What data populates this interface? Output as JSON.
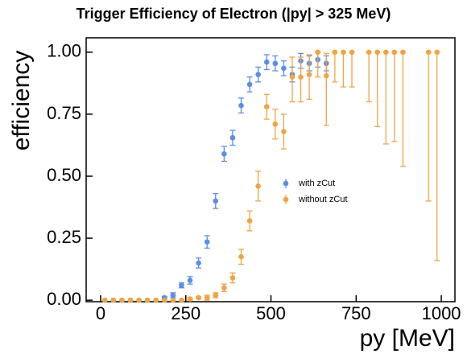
{
  "chart_data": {
    "type": "errorbar-scatter",
    "title": "Trigger Efficiency of Electron (|py| > 325 MeV)",
    "x_label": "py [MeV]",
    "y_label": "efficiency",
    "x": [
      12.5,
      37.5,
      62.5,
      87.5,
      112.5,
      137.5,
      162.5,
      187.5,
      212.5,
      237.5,
      262.5,
      287.5,
      312.5,
      337.5,
      362.5,
      387.5,
      412.5,
      437.5,
      462.5,
      487.5,
      512.5,
      537.5,
      562.5,
      587.5,
      612.5,
      637.5,
      662.5,
      687.5,
      712.5,
      737.5,
      762.5,
      787.5,
      812.5,
      837.5,
      862.5,
      887.5,
      912.5,
      937.5,
      962.5,
      987.5
    ],
    "series": [
      {
        "name": "with zCut",
        "color": "#5b8ee6",
        "values": [
          0,
          0,
          0,
          0,
          0,
          0,
          0,
          0.01,
          0.02,
          0.06,
          0.08,
          0.15,
          0.235,
          0.4,
          0.59,
          0.655,
          0.785,
          0.87,
          0.91,
          0.96,
          0.955,
          0.935,
          0.91,
          0.965,
          0.955,
          0.97,
          0.955,
          null,
          null,
          null,
          null,
          null,
          null,
          null,
          null,
          null,
          null,
          null,
          null,
          null
        ],
        "error_low": [
          0,
          0,
          0,
          0,
          0,
          0,
          0,
          0.005,
          0.01,
          0.01,
          0.015,
          0.02,
          0.025,
          0.03,
          0.03,
          0.03,
          0.03,
          0.03,
          0.03,
          0.03,
          0.03,
          0.03,
          0.03,
          0.03,
          0.03,
          0.03,
          0.03,
          null,
          null,
          null,
          null,
          null,
          null,
          null,
          null,
          null,
          null,
          null,
          null,
          null
        ],
        "error_high": [
          0,
          0,
          0,
          0,
          0,
          0,
          0,
          0.005,
          0.01,
          0.01,
          0.015,
          0.02,
          0.025,
          0.03,
          0.03,
          0.03,
          0.03,
          0.03,
          0.03,
          0.03,
          0.03,
          0.03,
          0.03,
          0.03,
          0.03,
          0.03,
          0.03,
          null,
          null,
          null,
          null,
          null,
          null,
          null,
          null,
          null,
          null,
          null,
          null,
          null
        ]
      },
      {
        "name": "without zCut",
        "color": "#f0a443",
        "values": [
          0,
          0,
          0,
          0,
          0,
          0,
          0,
          0,
          0,
          0,
          0.005,
          0.01,
          0.01,
          0.02,
          0.05,
          0.09,
          0.175,
          0.32,
          0.46,
          0.78,
          0.71,
          0.68,
          0.9,
          0.9,
          0.91,
          1,
          0.905,
          1,
          1,
          1,
          null,
          1,
          1,
          1,
          1,
          1,
          null,
          null,
          1,
          1
        ],
        "error_low": [
          0,
          0,
          0,
          0,
          0,
          0,
          0,
          0,
          0,
          0,
          0.005,
          0.005,
          0.01,
          0.01,
          0.015,
          0.02,
          0.03,
          0.04,
          0.06,
          0.05,
          0.06,
          0.07,
          0.1,
          0.1,
          0.1,
          0.1,
          0.2,
          0.12,
          0.14,
          0.14,
          null,
          0.2,
          0.3,
          0.37,
          0.36,
          0.46,
          null,
          null,
          0.6,
          0.84
        ],
        "error_high": [
          0,
          0,
          0,
          0,
          0,
          0,
          0,
          0,
          0,
          0,
          0.005,
          0.005,
          0.01,
          0.01,
          0.015,
          0.02,
          0.03,
          0.04,
          0.06,
          0.05,
          0.06,
          0.07,
          0.08,
          0.08,
          0.08,
          0,
          0.09,
          0,
          0,
          0,
          null,
          0,
          0,
          0,
          0,
          0,
          null,
          null,
          0,
          0
        ]
      }
    ],
    "xlim": [
      -42.5,
      1040
    ],
    "ylim": [
      -0.006,
      1.058
    ],
    "xticks": [
      0,
      250,
      500,
      750,
      1000
    ],
    "yticks": [
      {
        "value": 0,
        "label": "0.00"
      },
      {
        "value": 0.25,
        "label": "0.25"
      },
      {
        "value": 0.5,
        "label": "0.50"
      },
      {
        "value": 0.75,
        "label": "0.75"
      },
      {
        "value": 1,
        "label": "1.00"
      }
    ],
    "legend": "center-right"
  }
}
